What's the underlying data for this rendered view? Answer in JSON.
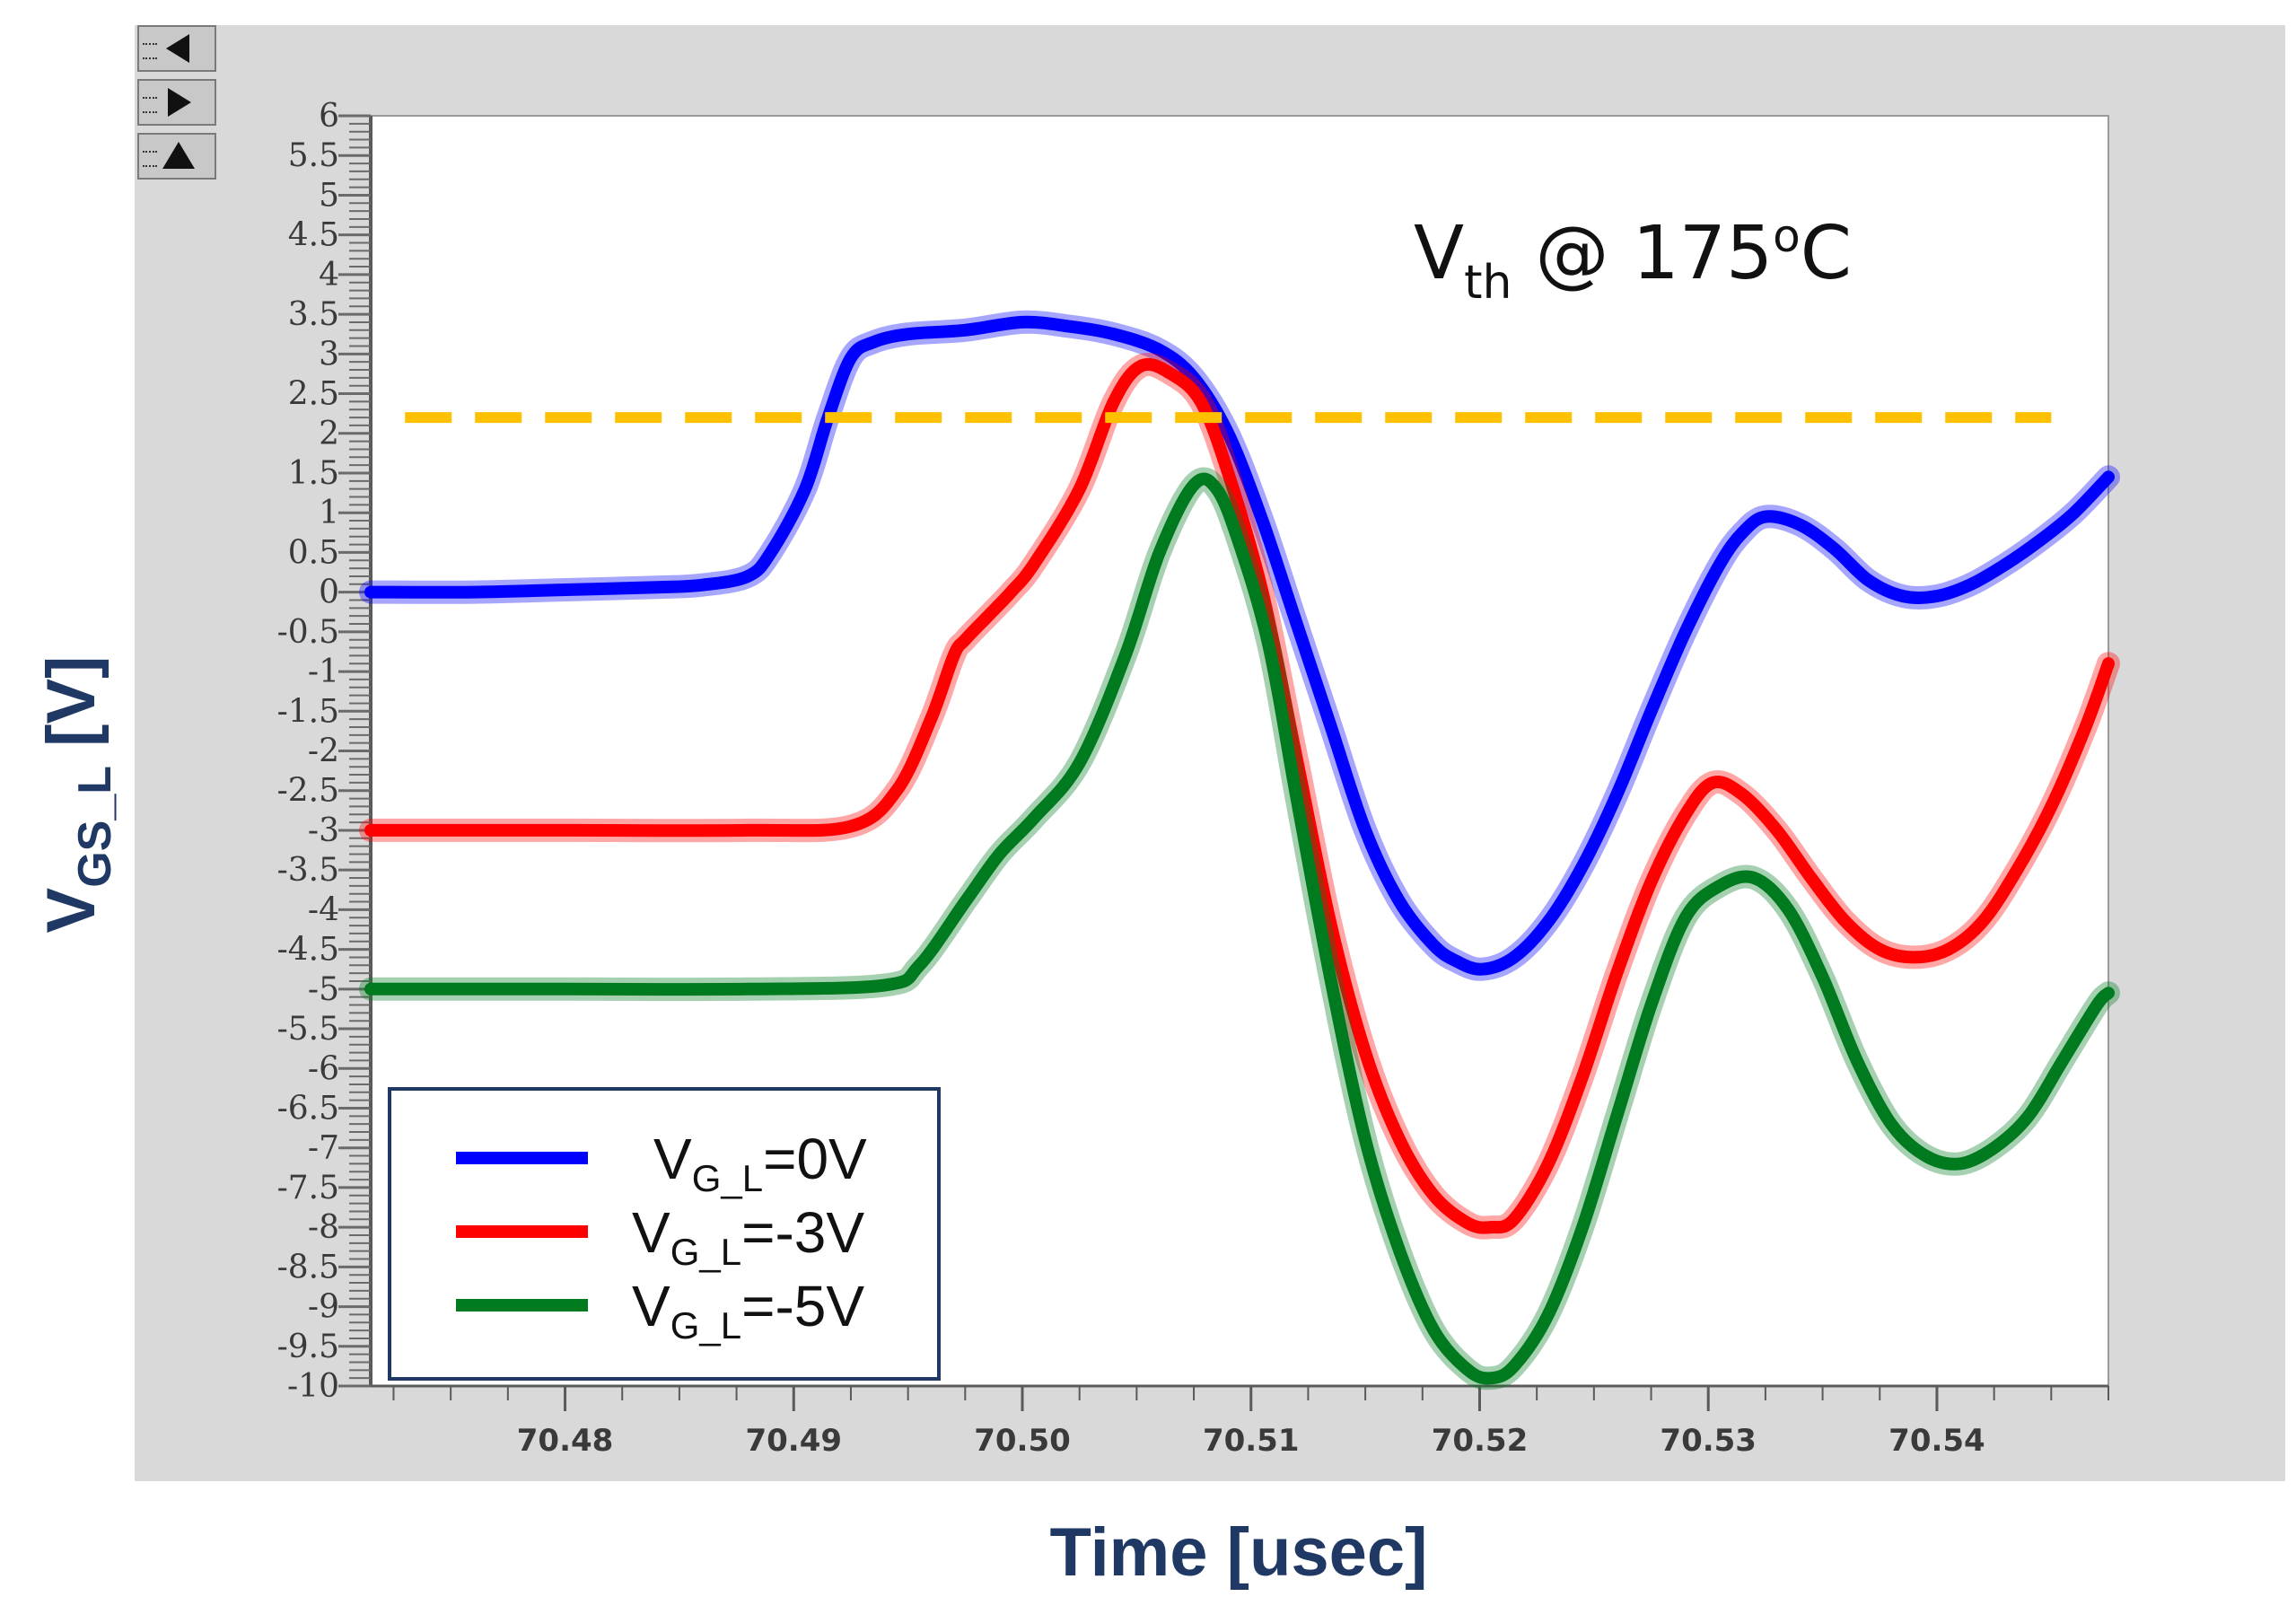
{
  "chart_data": {
    "type": "line",
    "title": "",
    "annotation": {
      "main": "V",
      "sub": "th",
      "rest": " @ 175",
      "sup": "o",
      "end": "C"
    },
    "xlabel": "Time [usec]",
    "ylabel": {
      "main": "V",
      "sub": "GS_L",
      "rest": " [V]"
    },
    "xlim": [
      70.4715,
      70.5475
    ],
    "ylim": [
      -10,
      6
    ],
    "x_ticks": [
      70.48,
      70.49,
      70.5,
      70.51,
      70.52,
      70.53,
      70.54
    ],
    "x_tick_labels": [
      "70.48",
      "70.49",
      "70.50",
      "70.51",
      "70.52",
      "70.53",
      "70.54"
    ],
    "y_ticks": [
      6,
      5.5,
      5,
      4.5,
      4,
      3.5,
      3,
      2.5,
      2,
      1.5,
      1,
      0.5,
      0,
      -0.5,
      -1,
      -1.5,
      -2,
      -2.5,
      -3,
      -3.5,
      -4,
      -4.5,
      -5,
      -5.5,
      -6,
      -6.5,
      -7,
      -7.5,
      -8,
      -8.5,
      -9,
      -9.5,
      -10
    ],
    "y_tick_labels": [
      "6",
      "5.5",
      "5",
      "4.5",
      "4",
      "3.5",
      "3",
      "2.5",
      "2",
      "1.5",
      "1",
      "0.5",
      "0",
      "-0.5",
      "-1",
      "-1.5",
      "-2",
      "-2.5",
      "-3",
      "-3.5",
      "-4",
      "-4.5",
      "-5",
      "-5.5",
      "-6",
      "-6.5",
      "-7",
      "-7.5",
      "-8",
      "-8.5",
      "-9",
      "-9.5",
      "-10"
    ],
    "threshold": {
      "value": 2.2,
      "x_start": 70.473,
      "x_end": 70.545,
      "color": "#ffc000"
    },
    "series": [
      {
        "name": "V_G_L=0V",
        "legend": {
          "pre": "V",
          "sub": "G_L",
          "post": "=0V"
        },
        "color": "#0000ff",
        "x": [
          70.4715,
          70.476,
          70.48,
          70.484,
          70.486,
          70.488,
          70.489,
          70.4905,
          70.4915,
          70.4925,
          70.4935,
          70.495,
          70.4975,
          70.5,
          70.502,
          70.504,
          70.506,
          70.5075,
          70.509,
          70.5105,
          70.512,
          70.5135,
          70.515,
          70.5165,
          70.518,
          70.519,
          70.5201,
          70.5215,
          70.523,
          70.5245,
          70.526,
          70.5275,
          70.529,
          70.5305,
          70.5315,
          70.5325,
          70.534,
          70.5355,
          70.537,
          70.5385,
          70.54,
          70.5415,
          70.543,
          70.5445,
          70.546,
          70.5475
        ],
        "y": [
          0.0,
          0.0,
          0.03,
          0.06,
          0.09,
          0.2,
          0.5,
          1.3,
          2.2,
          2.95,
          3.15,
          3.25,
          3.3,
          3.4,
          3.35,
          3.25,
          3.05,
          2.7,
          2.0,
          0.9,
          -0.4,
          -1.7,
          -3.0,
          -3.9,
          -4.45,
          -4.65,
          -4.75,
          -4.6,
          -4.15,
          -3.45,
          -2.55,
          -1.5,
          -0.5,
          0.35,
          0.75,
          0.95,
          0.85,
          0.55,
          0.15,
          -0.05,
          -0.05,
          0.1,
          0.35,
          0.65,
          1.0,
          1.45
        ]
      },
      {
        "name": "V_G_L=-3V",
        "legend": {
          "pre": "V",
          "sub": "G_L",
          "post": "=-3V"
        },
        "color": "#ff0000",
        "x": [
          70.4715,
          70.48,
          70.488,
          70.4925,
          70.4945,
          70.496,
          70.497,
          70.4975,
          70.4985,
          70.4995,
          70.5005,
          70.5025,
          70.504,
          70.5052,
          70.5065,
          70.5078,
          70.509,
          70.5105,
          70.512,
          70.5135,
          70.515,
          70.5165,
          70.518,
          70.5195,
          70.5205,
          70.5215,
          70.523,
          70.5245,
          70.526,
          70.5275,
          70.529,
          70.5302,
          70.5315,
          70.533,
          70.5345,
          70.536,
          70.5375,
          70.539,
          70.5405,
          70.542,
          70.5435,
          70.545,
          70.5465,
          70.5475
        ],
        "y": [
          -3.0,
          -3.0,
          -3.0,
          -2.95,
          -2.5,
          -1.6,
          -0.8,
          -0.6,
          -0.3,
          0.0,
          0.35,
          1.3,
          2.4,
          2.85,
          2.75,
          2.4,
          1.5,
          0.0,
          -2.1,
          -4.2,
          -5.8,
          -6.9,
          -7.6,
          -7.95,
          -8.0,
          -7.9,
          -7.2,
          -6.1,
          -4.8,
          -3.65,
          -2.8,
          -2.4,
          -2.55,
          -3.0,
          -3.6,
          -4.15,
          -4.5,
          -4.6,
          -4.5,
          -4.15,
          -3.5,
          -2.7,
          -1.7,
          -0.9
        ]
      },
      {
        "name": "V_G_L=-5V",
        "legend": {
          "pre": "V",
          "sub": "G_L",
          "post": "=-5V"
        },
        "color": "#007a1f",
        "x": [
          70.4715,
          70.48,
          70.488,
          70.494,
          70.4955,
          70.4975,
          70.499,
          70.5005,
          70.5025,
          70.5045,
          70.506,
          70.5075,
          70.5085,
          70.5095,
          70.5108,
          70.512,
          70.5135,
          70.515,
          70.5165,
          70.518,
          70.5195,
          70.5205,
          70.5215,
          70.523,
          70.5245,
          70.526,
          70.5275,
          70.529,
          70.5305,
          70.532,
          70.5335,
          70.535,
          70.5365,
          70.538,
          70.5395,
          70.541,
          70.5425,
          70.544,
          70.5455,
          70.547,
          70.5475
        ],
        "y": [
          -5.0,
          -5.0,
          -5.0,
          -4.95,
          -4.7,
          -3.9,
          -3.3,
          -2.85,
          -2.15,
          -0.8,
          0.5,
          1.35,
          1.3,
          0.6,
          -0.7,
          -2.6,
          -4.9,
          -6.9,
          -8.3,
          -9.3,
          -9.8,
          -9.9,
          -9.75,
          -9.1,
          -8.0,
          -6.6,
          -5.2,
          -4.1,
          -3.7,
          -3.6,
          -4.0,
          -4.85,
          -5.9,
          -6.7,
          -7.1,
          -7.2,
          -7.0,
          -6.6,
          -5.9,
          -5.2,
          -5.05
        ]
      }
    ]
  }
}
